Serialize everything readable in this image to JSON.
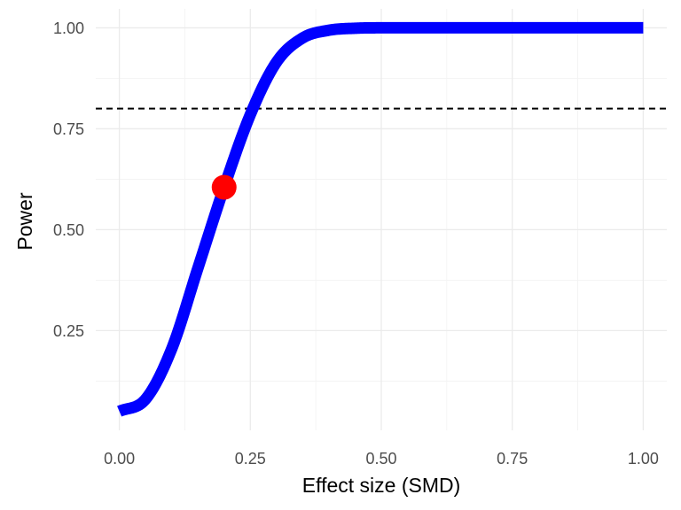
{
  "chart_data": {
    "type": "line",
    "title": "",
    "xlabel": "Effect size (SMD)",
    "ylabel": "Power",
    "xlim": [
      -0.045,
      1.045
    ],
    "ylim": [
      0.003,
      1.047
    ],
    "x_ticks": [
      0.0,
      0.25,
      0.5,
      0.75,
      1.0
    ],
    "x_tick_labels": [
      "0.00",
      "0.25",
      "0.50",
      "0.75",
      "1.00"
    ],
    "y_ticks": [
      0.25,
      0.5,
      0.75,
      1.0
    ],
    "y_tick_labels": [
      "0.25",
      "0.50",
      "0.75",
      "1.00"
    ],
    "grid": true,
    "legend": "none",
    "series": [
      {
        "color": "#0000ff",
        "x": [
          0.0,
          0.05,
          0.1,
          0.15,
          0.2,
          0.25,
          0.3,
          0.35,
          0.4,
          0.45,
          0.5,
          0.6,
          0.7,
          0.8,
          0.9,
          1.0
        ],
        "y": [
          0.05,
          0.08,
          0.205,
          0.405,
          0.605,
          0.785,
          0.915,
          0.975,
          0.994,
          0.999,
          1.0,
          1.0,
          1.0,
          1.0,
          1.0,
          1.0
        ]
      }
    ],
    "reference_line": {
      "y": 0.8,
      "style": "dashed",
      "color": "#000000"
    },
    "highlight_point": {
      "x": 0.2,
      "y": 0.605,
      "color": "#ff0000"
    }
  }
}
